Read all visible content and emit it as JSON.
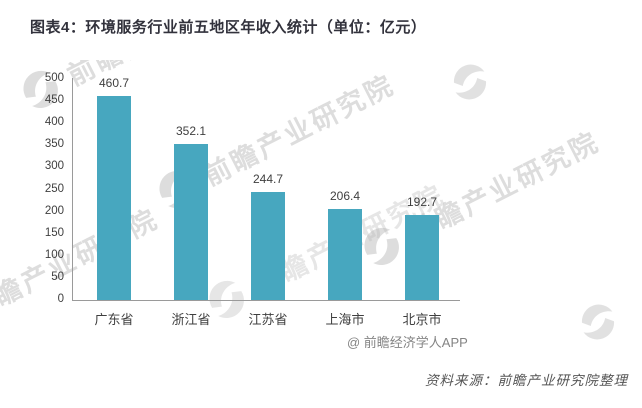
{
  "page": {
    "title": "图表4：环境服务行业前五地区年收入统计（单位：亿元）"
  },
  "chart_data": {
    "type": "bar",
    "title": "环境服务行业前五地区年收入统计",
    "unit_label": "亿元",
    "categories": [
      "广东省",
      "浙江省",
      "江苏省",
      "上海市",
      "北京市"
    ],
    "values": [
      460.7,
      352.1,
      244.7,
      206.4,
      192.7
    ],
    "ylim": [
      0,
      500
    ],
    "ytick_step": 50,
    "xlabel": "",
    "ylabel": "",
    "grid": false,
    "legend": "none",
    "bar_color": "#47a7bf"
  },
  "footer": {
    "app_credit": "@ 前瞻经济学人APP",
    "source_note": "资料来源：前瞻产业研究院整理"
  },
  "watermark": {
    "text": "前瞻产业研究院",
    "logo": "qianzhan-fan-logo"
  },
  "colors": {
    "bar": "#47a7bf",
    "title_text": "#32323c",
    "axis_text": "#3f3f3f",
    "axis_line": "#9a9a9a",
    "credit_text": "#848484",
    "source_text": "#555555",
    "watermark": "#b9b9b9",
    "background": "#ffffff"
  }
}
